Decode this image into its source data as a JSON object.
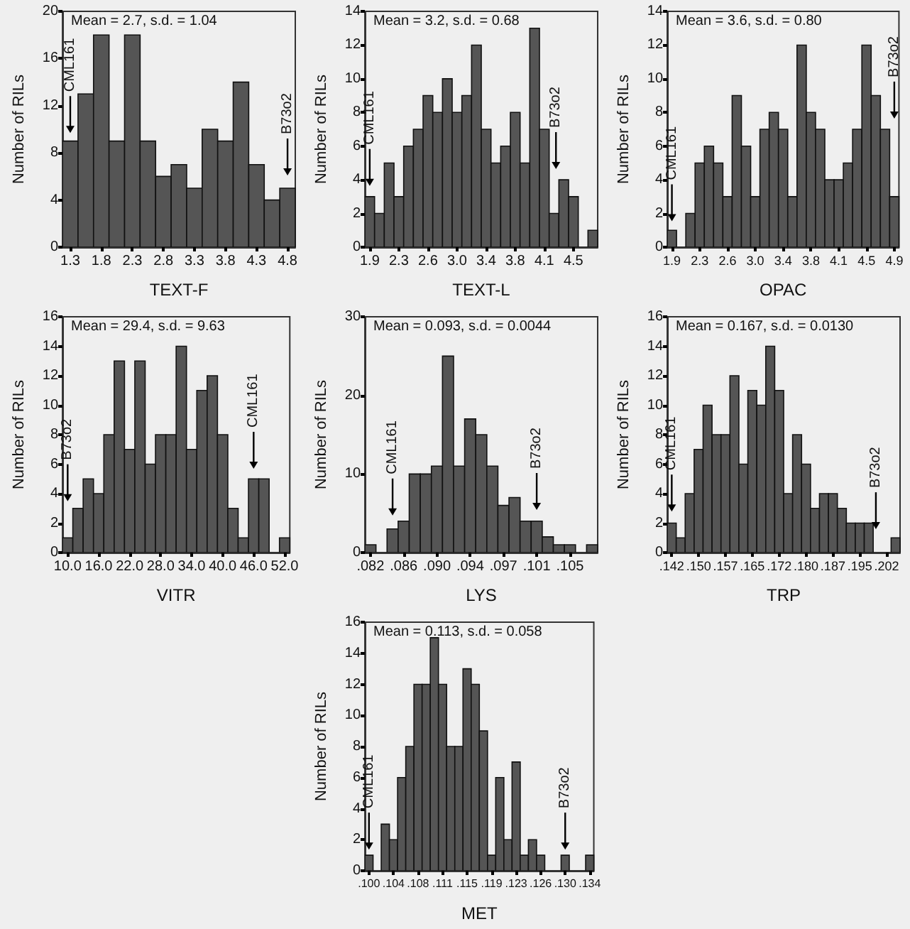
{
  "chart_data": [
    {
      "type": "histogram",
      "xlabel": "TEXT-F",
      "ylabel": "Number of RILs",
      "color": "#555555",
      "bins": [
        1.175,
        1.425,
        1.675,
        1.925,
        2.175,
        2.425,
        2.675,
        2.925,
        3.175,
        3.425,
        3.675,
        3.925,
        4.175,
        4.425,
        4.675,
        4.925
      ],
      "values": [
        9,
        13,
        18,
        9,
        18,
        9,
        6,
        7,
        5,
        10,
        9,
        14,
        7,
        4,
        5
      ],
      "xlim": [
        1.175,
        4.925
      ],
      "xticks": [
        1.3,
        1.8,
        2.3,
        2.8,
        3.3,
        3.8,
        4.3,
        4.8
      ],
      "ylim": [
        0,
        20
      ],
      "yticks": [
        0,
        4,
        8,
        12,
        16,
        20
      ],
      "annotations": [
        "Mean = 2.7, s.d. = 1.04",
        {
          "text": "CML161",
          "x": 1.3,
          "y": 9.2
        },
        {
          "text": "B73o2",
          "x": 4.8,
          "y": 5.6
        }
      ]
    },
    {
      "type": "histogram",
      "xlabel": "TEXT-L",
      "ylabel": "Number of RILs",
      "color": "#555555",
      "bins": [
        1.8375,
        1.9625,
        2.0875,
        2.2125,
        2.3375,
        2.4625,
        2.5875,
        2.7125,
        2.8375,
        2.9625,
        3.0875,
        3.2125,
        3.3375,
        3.4625,
        3.5875,
        3.7125,
        3.8375,
        3.9625,
        4.0875,
        4.2125,
        4.3375,
        4.4625,
        4.5875,
        4.7125,
        4.8375
      ],
      "values": [
        3,
        2,
        5,
        3,
        6,
        7,
        9,
        8,
        10,
        8,
        9,
        12,
        7,
        5,
        6,
        8,
        5,
        13,
        7,
        2,
        4,
        3,
        0,
        1
      ],
      "xlim": [
        1.8375,
        4.8375
      ],
      "xticks": [
        1.9,
        {
          "value": 2.275,
          "label": "2.3"
        },
        {
          "value": 2.65,
          "label": "2.6"
        },
        {
          "value": 3.025,
          "label": "3.0"
        },
        3.4,
        {
          "value": 3.775,
          "label": "3.8"
        },
        {
          "value": 4.15,
          "label": "4.1"
        },
        {
          "value": 4.525,
          "label": "4.5"
        }
      ],
      "ylim": [
        0,
        14
      ],
      "yticks": [
        0,
        2,
        4,
        6,
        8,
        10,
        12,
        14
      ],
      "annotations": [
        "Mean = 3.2, s.d. = 0.68",
        {
          "text": "CML161",
          "x": 1.9,
          "y": 3.3
        },
        {
          "text": "B73o2",
          "x": 4.3,
          "y": 4.3
        }
      ]
    },
    {
      "type": "histogram",
      "xlabel": "OPAC",
      "ylabel": "Number of RILs",
      "color": "#555555",
      "bins": [
        1.8375,
        1.9625,
        2.0875,
        2.2125,
        2.3375,
        2.4625,
        2.5875,
        2.7125,
        2.8375,
        2.9625,
        3.0875,
        3.2125,
        3.3375,
        3.4625,
        3.5875,
        3.7125,
        3.8375,
        3.9625,
        4.0875,
        4.2125,
        4.3375,
        4.4625,
        4.5875,
        4.7125,
        4.8375,
        4.9625
      ],
      "values": [
        1,
        0,
        2,
        5,
        6,
        5,
        3,
        9,
        6,
        3,
        7,
        8,
        7,
        3,
        12,
        8,
        7,
        4,
        4,
        5,
        7,
        12,
        9,
        7,
        3
      ],
      "xlim": [
        1.8375,
        4.9625
      ],
      "xticks": [
        1.9,
        {
          "value": 2.275,
          "label": "2.3"
        },
        {
          "value": 2.65,
          "label": "2.6"
        },
        {
          "value": 3.025,
          "label": "3.0"
        },
        3.4,
        {
          "value": 3.775,
          "label": "3.8"
        },
        {
          "value": 4.15,
          "label": "4.1"
        },
        {
          "value": 4.525,
          "label": "4.5"
        },
        4.9
      ],
      "ylim": [
        0,
        14
      ],
      "yticks": [
        0,
        2,
        4,
        6,
        8,
        10,
        12,
        14
      ],
      "annotations": [
        "Mean = 3.6, s.d. = 0.80",
        {
          "text": "CML161",
          "x": 1.9,
          "y": 1.2
        },
        {
          "text": "B73o2",
          "x": 4.9,
          "y": 7.3
        }
      ]
    },
    {
      "type": "histogram",
      "xlabel": "VITR",
      "ylabel": "Number of RILs",
      "color": "#555555",
      "bins": [
        9,
        11,
        13,
        15,
        17,
        19,
        21,
        23,
        25,
        27,
        29,
        31,
        33,
        35,
        37,
        39,
        41,
        43,
        45,
        47,
        49,
        51,
        53
      ],
      "values": [
        1,
        3,
        5,
        4,
        8,
        13,
        7,
        13,
        6,
        8,
        8,
        14,
        7,
        11,
        12,
        8,
        3,
        1,
        5,
        5,
        0,
        1
      ],
      "xlim": [
        9,
        53
      ],
      "xticks": [
        {
          "value": 10,
          "label": "10.0"
        },
        {
          "value": 16,
          "label": "16.0"
        },
        {
          "value": 22,
          "label": "22.0"
        },
        {
          "value": 28,
          "label": "28.0"
        },
        {
          "value": 34,
          "label": "34.0"
        },
        {
          "value": 40,
          "label": "40.0"
        },
        {
          "value": 46,
          "label": "46.0"
        },
        {
          "value": 52,
          "label": "52.0"
        }
      ],
      "ylim": [
        0,
        16
      ],
      "yticks": [
        0,
        2,
        4,
        6,
        8,
        10,
        12,
        14,
        16
      ],
      "annotations": [
        "Mean = 29.4, s.d. = 9.63",
        {
          "text": "B73o2",
          "x": 10,
          "y": 3.1
        },
        {
          "text": "CML161",
          "x": 46,
          "y": 5.3
        }
      ]
    },
    {
      "type": "histogram",
      "xlabel": "LYS",
      "ylabel": "Number of RILs",
      "color": "#555555",
      "bins": [
        0.08136,
        0.08264,
        0.08392,
        0.0852,
        0.08648,
        0.08776,
        0.08904,
        0.09032,
        0.0916,
        0.09288,
        0.09416,
        0.09544,
        0.09672,
        0.098,
        0.09928,
        0.10056,
        0.10184,
        0.10312,
        0.1044,
        0.10568,
        0.10696,
        0.10824
      ],
      "values": [
        1,
        0,
        3,
        4,
        10,
        10,
        11,
        25,
        11,
        17,
        15,
        11,
        6,
        7,
        4,
        4,
        2,
        1,
        1,
        0,
        1
      ],
      "xlim": [
        0.08136,
        0.10824
      ],
      "xticks": [
        {
          "value": 0.082,
          "label": ".082"
        },
        {
          "value": 0.08584,
          "label": ".086"
        },
        {
          "value": 0.08968,
          "label": ".090"
        },
        {
          "value": 0.09352,
          "label": ".094"
        },
        {
          "value": 0.09736,
          "label": ".097"
        },
        {
          "value": 0.1012,
          "label": ".101"
        },
        {
          "value": 0.10504,
          "label": ".105"
        }
      ],
      "ylim": [
        0,
        30
      ],
      "yticks": [
        0,
        10,
        20,
        30
      ],
      "annotations": [
        "Mean = 0.093, s.d. = 0.0044",
        {
          "text": "CML161",
          "x": 0.08456,
          "y": 4
        },
        {
          "text": "B73o2",
          "x": 0.1012,
          "y": 4.7
        }
      ]
    },
    {
      "type": "histogram",
      "xlabel": "TRP",
      "ylabel": "Number of RILs",
      "color": "#555555",
      "bins": [
        0.14075,
        0.14325,
        0.14575,
        0.14825,
        0.15075,
        0.15325,
        0.15575,
        0.15825,
        0.16075,
        0.16325,
        0.16575,
        0.16825,
        0.17075,
        0.17325,
        0.17575,
        0.17825,
        0.18075,
        0.18325,
        0.18575,
        0.18825,
        0.19075,
        0.19325,
        0.19575,
        0.19825,
        0.20075,
        0.20325,
        0.20575
      ],
      "values": [
        2,
        1,
        4,
        7,
        10,
        8,
        8,
        12,
        6,
        11,
        10,
        14,
        11,
        4,
        8,
        6,
        3,
        4,
        4,
        3,
        2,
        2,
        2,
        0,
        0,
        1
      ],
      "xlim": [
        0.14075,
        0.20575
      ],
      "xticks": [
        {
          "value": 0.142,
          "label": ".142"
        },
        {
          "value": 0.1495,
          "label": ".150"
        },
        {
          "value": 0.157,
          "label": ".157"
        },
        {
          "value": 0.1645,
          "label": ".165"
        },
        {
          "value": 0.172,
          "label": ".172"
        },
        {
          "value": 0.1795,
          "label": ".180"
        },
        {
          "value": 0.187,
          "label": ".187"
        },
        {
          "value": 0.1945,
          "label": ".195"
        },
        {
          "value": 0.202,
          "label": ".202"
        }
      ],
      "ylim": [
        0,
        16
      ],
      "yticks": [
        0,
        2,
        4,
        6,
        8,
        10,
        12,
        14,
        16
      ],
      "annotations": [
        "Mean = 0.167, s.d. = 0.0130",
        {
          "text": "CML161",
          "x": 0.142,
          "y": 2.4
        },
        {
          "text": "B73o2",
          "x": 0.199,
          "y": 1.2
        }
      ]
    },
    {
      "type": "histogram",
      "xlabel": "MET",
      "ylabel": "Number of RILs",
      "color": "#555555",
      "bins": [
        0.09937,
        0.10063,
        0.10189,
        0.10315,
        0.10441,
        0.10567,
        0.10693,
        0.10819,
        0.10945,
        0.11071,
        0.11197,
        0.11323,
        0.11449,
        0.11575,
        0.11701,
        0.11827,
        0.11953,
        0.12079,
        0.12205,
        0.12331,
        0.12457,
        0.12583,
        0.12709,
        0.12835,
        0.12961,
        0.13087,
        0.13213,
        0.13339,
        0.13465
      ],
      "values": [
        1,
        0,
        3,
        2,
        6,
        8,
        12,
        12,
        15,
        12,
        8,
        8,
        13,
        12,
        9,
        1,
        6,
        2,
        7,
        1,
        2,
        1,
        0,
        0,
        1,
        0,
        0,
        1
      ],
      "xlim": [
        0.09937,
        0.13465
      ],
      "xticks": [
        {
          "value": 0.1,
          "label": ".100"
        },
        {
          "value": 0.10378,
          "label": ".104"
        },
        {
          "value": 0.10756,
          "label": ".108"
        },
        {
          "value": 0.11134,
          "label": ".111"
        },
        {
          "value": 0.11512,
          "label": ".115"
        },
        {
          "value": 0.1189,
          "label": ".119"
        },
        {
          "value": 0.12268,
          "label": ".123"
        },
        {
          "value": 0.12646,
          "label": ".126"
        },
        {
          "value": 0.13024,
          "label": ".130"
        },
        {
          "value": 0.13402,
          "label": ".134"
        }
      ],
      "ylim": [
        0,
        16
      ],
      "yticks": [
        0,
        2,
        4,
        6,
        8,
        10,
        12,
        14,
        16
      ],
      "annotations": [
        "Mean = 0.113, s.d. = 0.058",
        {
          "text": "CML161",
          "x": 0.1,
          "y": 1
        },
        {
          "text": "B73o2",
          "x": 0.13024,
          "y": 1
        }
      ]
    }
  ]
}
